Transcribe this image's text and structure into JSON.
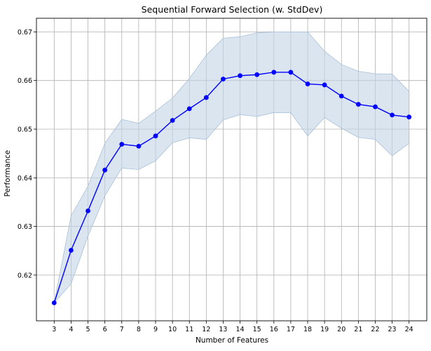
{
  "chart_data": {
    "type": "line",
    "title": "Sequential Forward Selection (w. StdDev)",
    "xlabel": "Number of Features",
    "ylabel": "Performance",
    "x": [
      3,
      4,
      5,
      6,
      7,
      8,
      9,
      10,
      11,
      12,
      13,
      14,
      15,
      16,
      17,
      18,
      19,
      20,
      21,
      22,
      23,
      24
    ],
    "series": [
      {
        "values": [
          0.6143,
          0.6251,
          0.6332,
          0.6416,
          0.6469,
          0.6465,
          0.6486,
          0.6518,
          0.6542,
          0.6565,
          0.6603,
          0.661,
          0.6612,
          0.6617,
          0.6617,
          0.6593,
          0.6591,
          0.6568,
          0.6551,
          0.6546,
          0.6529,
          0.6525
        ],
        "upper": [
          0.6143,
          0.6322,
          0.6383,
          0.6471,
          0.652,
          0.6512,
          0.6537,
          0.6564,
          0.6604,
          0.6652,
          0.6687,
          0.669,
          0.6698,
          0.67,
          0.67,
          0.67,
          0.666,
          0.6633,
          0.6619,
          0.6614,
          0.6613,
          0.6578
        ],
        "lower": [
          0.6143,
          0.6182,
          0.628,
          0.6363,
          0.642,
          0.6417,
          0.6435,
          0.6472,
          0.6482,
          0.6479,
          0.6519,
          0.653,
          0.6526,
          0.6534,
          0.6534,
          0.6486,
          0.6524,
          0.6502,
          0.6483,
          0.6479,
          0.6445,
          0.6471
        ],
        "color": "#0000ff",
        "band_color": "#c2d4e6"
      }
    ],
    "xticks": [
      "3",
      "4",
      "5",
      "6",
      "7",
      "8",
      "9",
      "10",
      "11",
      "12",
      "13",
      "14",
      "15",
      "16",
      "17",
      "18",
      "19",
      "20",
      "21",
      "22",
      "23",
      "24"
    ],
    "yticks": [
      {
        "value": 0.62,
        "label": "0.62"
      },
      {
        "value": 0.63,
        "label": "0.63"
      },
      {
        "value": 0.64,
        "label": "0.64"
      },
      {
        "value": 0.65,
        "label": "0.65"
      },
      {
        "value": 0.66,
        "label": "0.66"
      },
      {
        "value": 0.67,
        "label": "0.67"
      }
    ],
    "xlim": [
      1.95,
      25.05
    ],
    "ylim": [
      0.6106,
      0.6728
    ],
    "grid": true
  }
}
